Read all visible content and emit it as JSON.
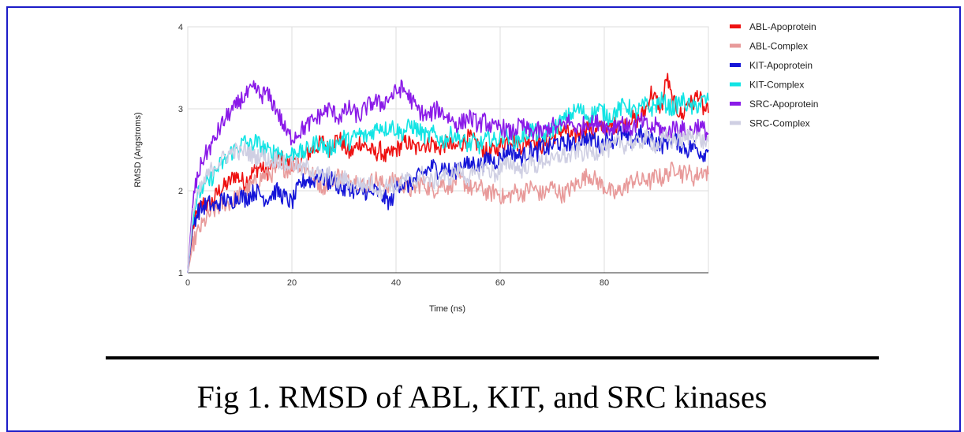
{
  "caption": "Fig 1. RMSD of ABL, KIT, and SRC kinases",
  "chart_data": {
    "type": "line",
    "title": "",
    "xlabel": "Time (ns)",
    "ylabel": "RMSD (Angstroms)",
    "xlim": [
      0,
      100
    ],
    "ylim": [
      1,
      4
    ],
    "xticks": [
      0,
      20,
      40,
      60,
      80
    ],
    "yticks": [
      1,
      2,
      3,
      4
    ],
    "grid": true,
    "legend": "right",
    "x": [
      0,
      1,
      2,
      3,
      4,
      5,
      6,
      7,
      8,
      9,
      10,
      11,
      12,
      13,
      14,
      15,
      16,
      17,
      18,
      19,
      20,
      21,
      22,
      23,
      24,
      25,
      26,
      27,
      28,
      29,
      30,
      31,
      32,
      33,
      34,
      35,
      36,
      37,
      38,
      39,
      40,
      41,
      42,
      43,
      44,
      45,
      46,
      47,
      48,
      49,
      50,
      51,
      52,
      53,
      54,
      55,
      56,
      57,
      58,
      59,
      60,
      61,
      62,
      63,
      64,
      65,
      66,
      67,
      68,
      69,
      70,
      71,
      72,
      73,
      74,
      75,
      76,
      77,
      78,
      79,
      80,
      81,
      82,
      83,
      84,
      85,
      86,
      87,
      88,
      89,
      90,
      91,
      92,
      93,
      94,
      95,
      96,
      97,
      98,
      99,
      100
    ],
    "series": [
      {
        "name": "ABL-Apoprotein",
        "color": "#ee1111",
        "values": [
          1.0,
          1.55,
          1.75,
          1.85,
          1.8,
          1.9,
          2.0,
          2.05,
          2.1,
          2.2,
          2.15,
          2.1,
          2.2,
          2.25,
          2.3,
          2.2,
          2.3,
          2.35,
          2.4,
          2.3,
          2.35,
          2.3,
          2.4,
          2.45,
          2.5,
          2.55,
          2.6,
          2.5,
          2.6,
          2.65,
          2.55,
          2.45,
          2.5,
          2.6,
          2.55,
          2.5,
          2.45,
          2.5,
          2.4,
          2.45,
          2.5,
          2.55,
          2.6,
          2.55,
          2.5,
          2.6,
          2.55,
          2.6,
          2.5,
          2.55,
          2.6,
          2.5,
          2.55,
          2.6,
          2.65,
          2.6,
          2.55,
          2.5,
          2.45,
          2.5,
          2.55,
          2.6,
          2.65,
          2.6,
          2.55,
          2.6,
          2.65,
          2.6,
          2.55,
          2.6,
          2.65,
          2.7,
          2.75,
          2.7,
          2.65,
          2.7,
          2.75,
          2.8,
          2.7,
          2.75,
          2.8,
          2.75,
          2.8,
          2.85,
          2.8,
          2.9,
          2.85,
          2.9,
          3.0,
          3.2,
          3.1,
          3.0,
          3.4,
          3.1,
          3.0,
          2.9,
          3.1,
          3.05,
          3.2,
          3.0,
          2.95
        ]
      },
      {
        "name": "ABL-Complex",
        "color": "#e89a9a",
        "values": [
          1.0,
          1.35,
          1.5,
          1.6,
          1.7,
          1.75,
          1.8,
          1.85,
          1.85,
          1.9,
          1.95,
          2.0,
          2.05,
          2.1,
          2.15,
          2.2,
          2.2,
          2.25,
          2.3,
          2.25,
          2.3,
          2.35,
          2.3,
          2.25,
          2.2,
          2.1,
          2.05,
          2.1,
          2.15,
          2.2,
          2.15,
          2.1,
          2.15,
          2.1,
          2.05,
          2.1,
          2.15,
          2.1,
          2.05,
          2.1,
          2.15,
          2.1,
          2.05,
          2.0,
          2.05,
          2.1,
          2.05,
          2.0,
          2.05,
          2.1,
          2.05,
          2.1,
          2.15,
          2.1,
          2.05,
          2.0,
          2.05,
          2.0,
          1.95,
          2.0,
          1.95,
          1.9,
          1.95,
          2.0,
          1.95,
          2.0,
          2.05,
          2.0,
          1.95,
          2.0,
          2.05,
          2.0,
          1.95,
          2.0,
          2.05,
          2.1,
          2.15,
          2.2,
          2.15,
          2.1,
          2.05,
          2.0,
          1.95,
          2.0,
          2.05,
          2.1,
          2.15,
          2.1,
          2.15,
          2.1,
          2.2,
          2.15,
          2.2,
          2.25,
          2.3,
          2.2,
          2.25,
          2.15,
          2.2,
          2.25,
          2.2
        ]
      },
      {
        "name": "KIT-Apoprotein",
        "color": "#1515d8",
        "values": [
          1.0,
          1.6,
          1.75,
          1.8,
          1.85,
          1.8,
          1.85,
          1.9,
          1.85,
          1.9,
          1.95,
          1.9,
          1.95,
          2.0,
          1.95,
          1.9,
          1.95,
          2.0,
          1.95,
          1.9,
          1.85,
          2.0,
          2.1,
          2.15,
          2.1,
          2.2,
          2.15,
          2.1,
          2.15,
          2.05,
          2.0,
          2.05,
          2.0,
          1.95,
          2.0,
          1.95,
          2.0,
          1.95,
          1.9,
          1.85,
          2.05,
          2.1,
          2.05,
          2.1,
          2.15,
          2.2,
          2.25,
          2.3,
          2.25,
          2.3,
          2.25,
          2.2,
          2.3,
          2.35,
          2.3,
          2.35,
          2.3,
          2.35,
          2.4,
          2.35,
          2.4,
          2.45,
          2.5,
          2.45,
          2.4,
          2.45,
          2.5,
          2.45,
          2.55,
          2.5,
          2.55,
          2.6,
          2.55,
          2.6,
          2.55,
          2.6,
          2.65,
          2.6,
          2.65,
          2.55,
          2.6,
          2.65,
          2.6,
          2.7,
          2.65,
          2.6,
          2.65,
          2.7,
          2.6,
          2.65,
          2.6,
          2.55,
          2.6,
          2.65,
          2.6,
          2.55,
          2.5,
          2.55,
          2.5,
          2.45,
          2.5
        ]
      },
      {
        "name": "KIT-Complex",
        "color": "#12e4e4",
        "values": [
          1.0,
          1.7,
          1.95,
          2.05,
          2.1,
          2.2,
          2.3,
          2.35,
          2.45,
          2.5,
          2.55,
          2.6,
          2.55,
          2.6,
          2.55,
          2.5,
          2.45,
          2.5,
          2.45,
          2.4,
          2.45,
          2.5,
          2.45,
          2.5,
          2.55,
          2.6,
          2.55,
          2.5,
          2.55,
          2.6,
          2.65,
          2.6,
          2.65,
          2.7,
          2.65,
          2.7,
          2.75,
          2.8,
          2.75,
          2.8,
          2.75,
          2.7,
          2.75,
          2.8,
          2.75,
          2.7,
          2.65,
          2.7,
          2.65,
          2.6,
          2.65,
          2.7,
          2.65,
          2.6,
          2.55,
          2.6,
          2.55,
          2.6,
          2.65,
          2.6,
          2.65,
          2.7,
          2.65,
          2.6,
          2.65,
          2.7,
          2.75,
          2.7,
          2.65,
          2.7,
          2.75,
          2.8,
          2.85,
          2.9,
          2.95,
          3.0,
          2.95,
          2.9,
          2.95,
          3.0,
          2.95,
          2.9,
          2.95,
          3.0,
          3.05,
          3.0,
          2.95,
          3.0,
          3.05,
          3.0,
          3.05,
          3.1,
          3.05,
          3.0,
          3.05,
          3.1,
          3.05,
          3.0,
          3.05,
          3.1,
          3.1
        ]
      },
      {
        "name": "SRC-Apoprotein",
        "color": "#8a1ae8",
        "values": [
          1.0,
          1.9,
          2.2,
          2.4,
          2.5,
          2.6,
          2.75,
          2.85,
          2.95,
          3.0,
          3.1,
          3.15,
          3.2,
          3.25,
          3.15,
          3.2,
          3.1,
          3.0,
          2.85,
          2.7,
          2.65,
          2.7,
          2.75,
          2.8,
          2.85,
          2.9,
          2.95,
          3.0,
          2.95,
          2.9,
          2.95,
          3.0,
          2.95,
          2.9,
          3.0,
          3.05,
          3.1,
          3.05,
          3.1,
          3.15,
          3.2,
          3.25,
          3.2,
          3.1,
          3.0,
          2.95,
          2.9,
          2.95,
          3.0,
          2.95,
          2.9,
          2.85,
          2.8,
          2.85,
          2.9,
          2.85,
          2.8,
          2.85,
          2.8,
          2.75,
          2.8,
          2.75,
          2.7,
          2.75,
          2.8,
          2.75,
          2.7,
          2.75,
          2.7,
          2.75,
          2.8,
          2.75,
          2.8,
          2.85,
          2.8,
          2.75,
          2.8,
          2.85,
          2.8,
          2.85,
          2.8,
          2.75,
          2.8,
          2.85,
          2.8,
          2.75,
          2.8,
          2.85,
          2.8,
          2.75,
          2.8,
          2.75,
          2.7,
          2.75,
          2.8,
          2.75,
          2.7,
          2.75,
          2.8,
          2.75,
          2.7
        ]
      },
      {
        "name": "SRC-Complex",
        "color": "#cfcfe3",
        "values": [
          1.0,
          1.75,
          1.95,
          2.1,
          2.2,
          2.3,
          2.35,
          2.4,
          2.45,
          2.5,
          2.45,
          2.5,
          2.45,
          2.4,
          2.45,
          2.4,
          2.35,
          2.4,
          2.35,
          2.3,
          2.35,
          2.3,
          2.25,
          2.3,
          2.25,
          2.2,
          2.15,
          2.2,
          2.15,
          2.1,
          2.15,
          2.1,
          2.05,
          2.1,
          2.05,
          2.1,
          2.05,
          2.0,
          2.05,
          2.1,
          2.05,
          2.1,
          2.15,
          2.1,
          2.15,
          2.2,
          2.15,
          2.1,
          2.15,
          2.2,
          2.15,
          2.2,
          2.25,
          2.2,
          2.15,
          2.2,
          2.25,
          2.3,
          2.25,
          2.2,
          2.25,
          2.3,
          2.35,
          2.3,
          2.25,
          2.3,
          2.35,
          2.3,
          2.35,
          2.4,
          2.35,
          2.4,
          2.45,
          2.4,
          2.45,
          2.5,
          2.45,
          2.5,
          2.45,
          2.5,
          2.55,
          2.5,
          2.55,
          2.6,
          2.55,
          2.6,
          2.55,
          2.6,
          2.65,
          2.6,
          2.55,
          2.6,
          2.65,
          2.6,
          2.65,
          2.6,
          2.65,
          2.7,
          2.65,
          2.6,
          2.6
        ]
      }
    ]
  }
}
